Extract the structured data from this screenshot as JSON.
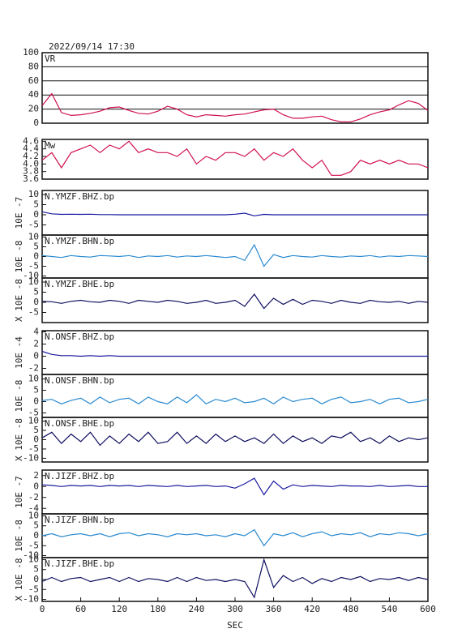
{
  "chart_data": [
    {
      "type": "line",
      "title": "2022/09/14 17:30",
      "xlim": [
        0,
        600
      ],
      "ylim": [
        0,
        100
      ],
      "yticks": [
        0,
        20,
        40,
        60,
        80,
        100
      ],
      "grid": true,
      "x": [
        0,
        15,
        30,
        45,
        60,
        75,
        90,
        105,
        120,
        135,
        150,
        165,
        180,
        195,
        210,
        225,
        240,
        255,
        270,
        285,
        300,
        315,
        330,
        345,
        360,
        375,
        390,
        405,
        420,
        435,
        450,
        465,
        480,
        495,
        510,
        525,
        540,
        555,
        570,
        585,
        600
      ],
      "series": [
        {
          "name": "VR",
          "color": "#d0104c",
          "values": [
            25,
            42,
            15,
            11,
            12,
            14,
            17,
            22,
            23,
            18,
            14,
            13,
            17,
            24,
            20,
            12,
            9,
            12,
            11,
            10,
            12,
            13,
            16,
            19,
            20,
            12,
            7,
            7,
            9,
            10,
            5,
            2,
            2,
            6,
            12,
            16,
            19,
            26,
            32,
            28,
            18
          ]
        }
      ]
    },
    {
      "type": "line",
      "xlim": [
        0,
        600
      ],
      "ylim": [
        3.6,
        4.65
      ],
      "yticks": [
        {
          "value": 3.6,
          "label": "3.6"
        },
        3.8,
        {
          "value": 4.0,
          "label": "4.0"
        },
        4.2,
        4.4,
        4.6
      ],
      "x": [
        0,
        15,
        30,
        45,
        60,
        75,
        90,
        105,
        120,
        135,
        150,
        165,
        180,
        195,
        210,
        225,
        240,
        255,
        270,
        285,
        300,
        315,
        330,
        345,
        360,
        375,
        390,
        405,
        420,
        435,
        450,
        465,
        480,
        495,
        510,
        525,
        540,
        555,
        570,
        585,
        600
      ],
      "series": [
        {
          "name": "Mw",
          "color": "#d0104c",
          "values": [
            4.1,
            4.3,
            3.9,
            4.3,
            4.4,
            4.5,
            4.3,
            4.5,
            4.4,
            4.6,
            4.3,
            4.4,
            4.3,
            4.3,
            4.2,
            4.4,
            4.0,
            4.2,
            4.1,
            4.3,
            4.3,
            4.2,
            4.4,
            4.1,
            4.3,
            4.2,
            4.4,
            4.1,
            3.9,
            4.1,
            3.7,
            3.7,
            3.8,
            4.1,
            4.0,
            4.1,
            4.0,
            4.1,
            4.0,
            4.0,
            3.9
          ]
        }
      ]
    },
    {
      "type": "line",
      "ylabel": "10E -7",
      "xlim": [
        0,
        600
      ],
      "ylim": [
        -10,
        12
      ],
      "yticks": [
        -5,
        0,
        5,
        10
      ],
      "x": [
        0,
        15,
        30,
        45,
        60,
        75,
        90,
        105,
        120,
        135,
        150,
        165,
        180,
        195,
        210,
        225,
        240,
        255,
        270,
        285,
        300,
        315,
        330,
        345,
        360,
        375,
        390,
        405,
        420,
        435,
        450,
        465,
        480,
        495,
        510,
        525,
        540,
        555,
        570,
        585,
        600
      ],
      "series": [
        {
          "name": "N.YMZF.BHZ.bp",
          "color": "#1a1aa0",
          "values": [
            1.5,
            0.5,
            0.2,
            0.3,
            0.2,
            0.3,
            0.1,
            0.1,
            0,
            0,
            0,
            0,
            0,
            0,
            0,
            0,
            0,
            0,
            0,
            0,
            0.3,
            0.8,
            -0.5,
            0.2,
            0,
            0,
            0,
            0,
            0,
            0,
            0,
            0,
            0,
            0,
            0,
            0,
            0,
            0,
            0,
            0,
            0
          ]
        }
      ]
    },
    {
      "type": "line",
      "ylabel": "10E -8",
      "xlim": [
        0,
        600
      ],
      "ylim": [
        -11,
        11
      ],
      "yticks": [
        -10,
        -5,
        0,
        5,
        10
      ],
      "x": [
        0,
        15,
        30,
        45,
        60,
        75,
        90,
        105,
        120,
        135,
        150,
        165,
        180,
        195,
        210,
        225,
        240,
        255,
        270,
        285,
        300,
        315,
        330,
        345,
        360,
        375,
        390,
        405,
        420,
        435,
        450,
        465,
        480,
        495,
        510,
        525,
        540,
        555,
        570,
        585,
        600
      ],
      "series": [
        {
          "name": "N.YMZF.BHN.bp",
          "color": "#2a8ad0",
          "values": [
            0.5,
            0,
            -0.5,
            0.5,
            0,
            -0.3,
            0.5,
            0.3,
            0,
            0.5,
            -0.5,
            0.3,
            0,
            0.5,
            -0.3,
            0.3,
            0,
            0.5,
            0,
            -0.5,
            0,
            -2,
            6,
            -5,
            1,
            -0.5,
            0.5,
            0,
            -0.3,
            0.5,
            0,
            -0.3,
            0.3,
            0,
            0.5,
            -0.3,
            0.3,
            0,
            0.5,
            0.3,
            0
          ]
        }
      ]
    },
    {
      "type": "line",
      "ylabel": "X 10E -8",
      "xlim": [
        0,
        600
      ],
      "ylim": [
        -10,
        12
      ],
      "yticks": [
        -5,
        0,
        5,
        10
      ],
      "x": [
        0,
        15,
        30,
        45,
        60,
        75,
        90,
        105,
        120,
        135,
        150,
        165,
        180,
        195,
        210,
        225,
        240,
        255,
        270,
        285,
        300,
        315,
        330,
        345,
        360,
        375,
        390,
        405,
        420,
        435,
        450,
        465,
        480,
        495,
        510,
        525,
        540,
        555,
        570,
        585,
        600
      ],
      "series": [
        {
          "name": "N.YMZF.BHE.bp",
          "color": "#101060",
          "values": [
            0.5,
            0.3,
            -0.5,
            0.5,
            1,
            0.3,
            0,
            1,
            0.5,
            -0.5,
            1,
            0.5,
            0,
            1,
            0.5,
            -0.5,
            0,
            1,
            -0.5,
            0,
            1,
            -2,
            4,
            -3,
            2,
            -1,
            1.5,
            -1,
            1,
            0.5,
            -0.5,
            1,
            0,
            -0.5,
            1,
            0.3,
            0,
            0.5,
            -0.5,
            0.5,
            0
          ]
        }
      ]
    },
    {
      "type": "line",
      "ylabel": "10E -4",
      "xlim": [
        0,
        600
      ],
      "ylim": [
        -3,
        4.2
      ],
      "yticks": [
        -2,
        0,
        2,
        4
      ],
      "x": [
        0,
        15,
        30,
        45,
        60,
        75,
        90,
        105,
        120,
        135,
        150,
        165,
        180,
        195,
        210,
        225,
        240,
        255,
        270,
        285,
        300,
        315,
        330,
        345,
        360,
        375,
        390,
        405,
        420,
        435,
        450,
        465,
        480,
        495,
        510,
        525,
        540,
        555,
        570,
        585,
        600
      ],
      "series": [
        {
          "name": "N.ONSF.BHZ.bp",
          "color": "#1a1aa0",
          "values": [
            0.8,
            0.3,
            0.1,
            0.1,
            0,
            0.1,
            0,
            0.1,
            0,
            0,
            0,
            0,
            0,
            0,
            0,
            0,
            0,
            0,
            0,
            0,
            0,
            0,
            0,
            0,
            0,
            0,
            0,
            0,
            0,
            0,
            0,
            0,
            0,
            0,
            0,
            0,
            0,
            0,
            0,
            0,
            0
          ]
        }
      ]
    },
    {
      "type": "line",
      "ylabel": "10E -8",
      "xlim": [
        0,
        600
      ],
      "ylim": [
        -7,
        12
      ],
      "yticks": [
        -5,
        0,
        5,
        10
      ],
      "x": [
        0,
        15,
        30,
        45,
        60,
        75,
        90,
        105,
        120,
        135,
        150,
        165,
        180,
        195,
        210,
        225,
        240,
        255,
        270,
        285,
        300,
        315,
        330,
        345,
        360,
        375,
        390,
        405,
        420,
        435,
        450,
        465,
        480,
        495,
        510,
        525,
        540,
        555,
        570,
        585,
        600
      ],
      "series": [
        {
          "name": "N.ONSF.BHN.bp",
          "color": "#2a8ad0",
          "values": [
            0.5,
            1,
            -1,
            0.5,
            1.5,
            -1,
            2,
            -0.5,
            1,
            1.5,
            -1,
            2,
            0,
            -1,
            2,
            -0.5,
            3,
            -1,
            1,
            0,
            1.5,
            -0.5,
            0,
            1.5,
            -1,
            2,
            0,
            1,
            1.5,
            -1,
            1,
            2,
            -0.5,
            0,
            1,
            -1,
            1,
            1.5,
            -0.5,
            0,
            1
          ]
        }
      ]
    },
    {
      "type": "line",
      "ylabel": "X 10E -8",
      "xlim": [
        0,
        600
      ],
      "ylim": [
        -12,
        12
      ],
      "yticks": [
        -10,
        -5,
        0,
        5,
        10
      ],
      "x": [
        0,
        15,
        30,
        45,
        60,
        75,
        90,
        105,
        120,
        135,
        150,
        165,
        180,
        195,
        210,
        225,
        240,
        255,
        270,
        285,
        300,
        315,
        330,
        345,
        360,
        375,
        390,
        405,
        420,
        435,
        450,
        465,
        480,
        495,
        510,
        525,
        540,
        555,
        570,
        585,
        600
      ],
      "series": [
        {
          "name": "N.ONSF.BHE.bp",
          "color": "#101060",
          "values": [
            1,
            4,
            -2,
            3,
            -1,
            4,
            -3,
            2,
            -2,
            3,
            -1,
            4,
            -2,
            -1,
            4,
            -2,
            2,
            -2,
            3,
            -1,
            2,
            -1,
            1,
            -2,
            3,
            -2,
            2,
            -1,
            1,
            -2,
            2,
            1,
            4,
            -1,
            1,
            -2,
            2,
            -1,
            1,
            0,
            1
          ]
        }
      ]
    },
    {
      "type": "line",
      "ylabel": "10E -7",
      "xlim": [
        0,
        600
      ],
      "ylim": [
        -5,
        3
      ],
      "yticks": [
        -4,
        -2,
        0,
        2
      ],
      "x": [
        0,
        15,
        30,
        45,
        60,
        75,
        90,
        105,
        120,
        135,
        150,
        165,
        180,
        195,
        210,
        225,
        240,
        255,
        270,
        285,
        300,
        315,
        330,
        345,
        360,
        375,
        390,
        405,
        420,
        435,
        450,
        465,
        480,
        495,
        510,
        525,
        540,
        555,
        570,
        585,
        600
      ],
      "series": [
        {
          "name": "N.JIZF.BHZ.bp",
          "color": "#1a1aa0",
          "values": [
            0.3,
            0.2,
            0,
            0.2,
            0.1,
            0.2,
            0,
            0.2,
            0.1,
            0.2,
            0,
            0.2,
            0.1,
            0,
            0.2,
            0,
            0.1,
            0.2,
            0,
            0.1,
            -0.3,
            0.5,
            1.5,
            -1.5,
            1,
            -0.5,
            0.3,
            0,
            0.2,
            0.1,
            0,
            0.2,
            0.1,
            0.1,
            0,
            0.2,
            0,
            0.1,
            0.2,
            0,
            0
          ]
        }
      ]
    },
    {
      "type": "line",
      "ylabel": "10E -8",
      "xlim": [
        0,
        600
      ],
      "ylim": [
        -11,
        11
      ],
      "yticks": [
        -10,
        -5,
        0,
        5,
        10
      ],
      "x": [
        0,
        15,
        30,
        45,
        60,
        75,
        90,
        105,
        120,
        135,
        150,
        165,
        180,
        195,
        210,
        225,
        240,
        255,
        270,
        285,
        300,
        315,
        330,
        345,
        360,
        375,
        390,
        405,
        420,
        435,
        450,
        465,
        480,
        495,
        510,
        525,
        540,
        555,
        570,
        585,
        600
      ],
      "series": [
        {
          "name": "N.JIZF.BHN.bp",
          "color": "#2a8ad0",
          "values": [
            0,
            1,
            -0.5,
            0.5,
            1,
            0,
            1,
            -0.5,
            1,
            1.5,
            0,
            1,
            0.5,
            -0.5,
            1,
            0.5,
            1,
            0,
            0.5,
            -0.5,
            1,
            0,
            3,
            -5,
            1,
            0,
            1.5,
            -0.5,
            1,
            2,
            0,
            1,
            0.5,
            1.5,
            -0.5,
            1,
            0.5,
            1.5,
            1,
            0,
            1
          ]
        }
      ]
    },
    {
      "type": "line",
      "ylabel": "X 10E -8",
      "xlabel": "SEC",
      "xlim": [
        0,
        600
      ],
      "ylim": [
        -11,
        11
      ],
      "yticks": [
        -10,
        -5,
        0,
        5,
        10
      ],
      "xticks": [
        0,
        60,
        120,
        180,
        240,
        300,
        360,
        420,
        480,
        540,
        600
      ],
      "x": [
        0,
        15,
        30,
        45,
        60,
        75,
        90,
        105,
        120,
        135,
        150,
        165,
        180,
        195,
        210,
        225,
        240,
        255,
        270,
        285,
        300,
        315,
        330,
        345,
        360,
        375,
        390,
        405,
        420,
        435,
        450,
        465,
        480,
        495,
        510,
        525,
        540,
        555,
        570,
        585,
        600
      ],
      "series": [
        {
          "name": "N.JIZF.BHE.bp",
          "color": "#101060",
          "values": [
            -1,
            1,
            -1,
            0.5,
            1,
            -1,
            0,
            1,
            -1,
            1,
            -1,
            0.5,
            0,
            -1,
            1,
            -1,
            1,
            -0.5,
            0,
            -1,
            0,
            -1,
            -9,
            10,
            -4,
            2,
            -1,
            1,
            -2,
            0.5,
            -1,
            1,
            0,
            1.5,
            -1,
            0.5,
            0,
            1,
            -0.5,
            1,
            0
          ]
        }
      ]
    }
  ]
}
